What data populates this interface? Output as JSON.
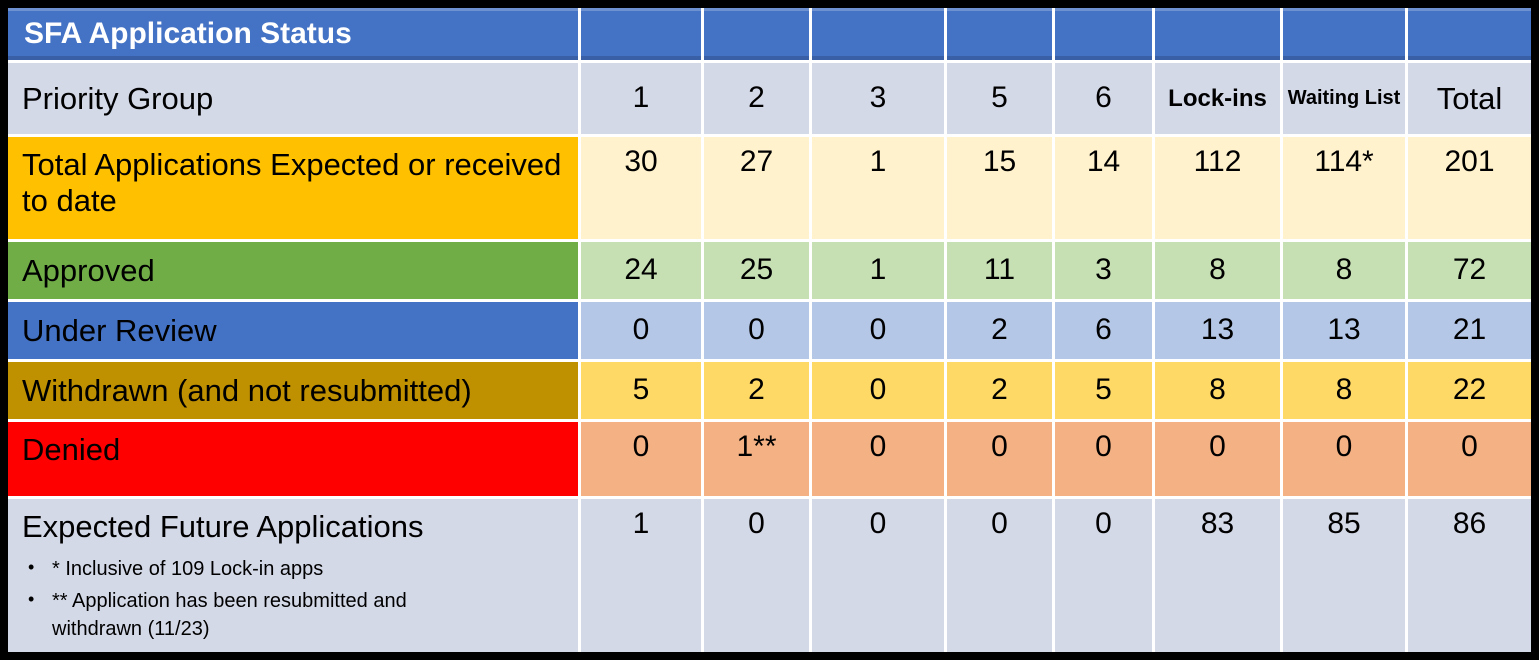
{
  "chart_data": {
    "type": "table",
    "title": "SFA Application Status",
    "row_header": "Priority Group",
    "columns": [
      "1",
      "2",
      "3",
      "5",
      "6",
      "Lock-ins",
      "Waiting List",
      "Total"
    ],
    "rows": [
      {
        "label": "Total Applications Expected or received to date",
        "values": [
          "30",
          "27",
          "1",
          "15",
          "14",
          "112",
          "114*",
          "201"
        ]
      },
      {
        "label": "Approved",
        "values": [
          "24",
          "25",
          "1",
          "11",
          "3",
          "8",
          "8",
          "72"
        ]
      },
      {
        "label": "Under Review",
        "values": [
          "0",
          "0",
          "0",
          "2",
          "6",
          "13",
          "13",
          "21"
        ]
      },
      {
        "label": "Withdrawn (and not resubmitted)",
        "values": [
          "5",
          "2",
          "0",
          "2",
          "5",
          "8",
          "8",
          "22"
        ]
      },
      {
        "label": "Denied",
        "values": [
          "0",
          "1**",
          "0",
          "0",
          "0",
          "0",
          "0",
          "0"
        ]
      },
      {
        "label": "Expected Future Applications",
        "values": [
          "1",
          "0",
          "0",
          "0",
          "0",
          "83",
          "85",
          "86"
        ]
      }
    ],
    "footnotes": [
      "* Inclusive of 109 Lock-in apps",
      "** Application has been resubmitted and withdrawn (11/23)"
    ],
    "layout_hints": {
      "grid": "white gridlines",
      "outer_border": "black"
    }
  },
  "colors": {
    "header_blue": "#4472C4",
    "lavender": "#D4D9E8",
    "gold_label": "#FFC000",
    "cream_cells": "#FFF2CC",
    "green_label": "#70AD47",
    "light_green_cells": "#C6E0B4",
    "blue_label": "#4472C4",
    "light_blue_cells": "#B4C7E7",
    "dark_gold_label": "#BF9000",
    "yellow_cells": "#FFD966",
    "red_label": "#FF0000",
    "orange_cells": "#F4B183",
    "border": "#000000",
    "title_text": "#FFFFFF"
  }
}
